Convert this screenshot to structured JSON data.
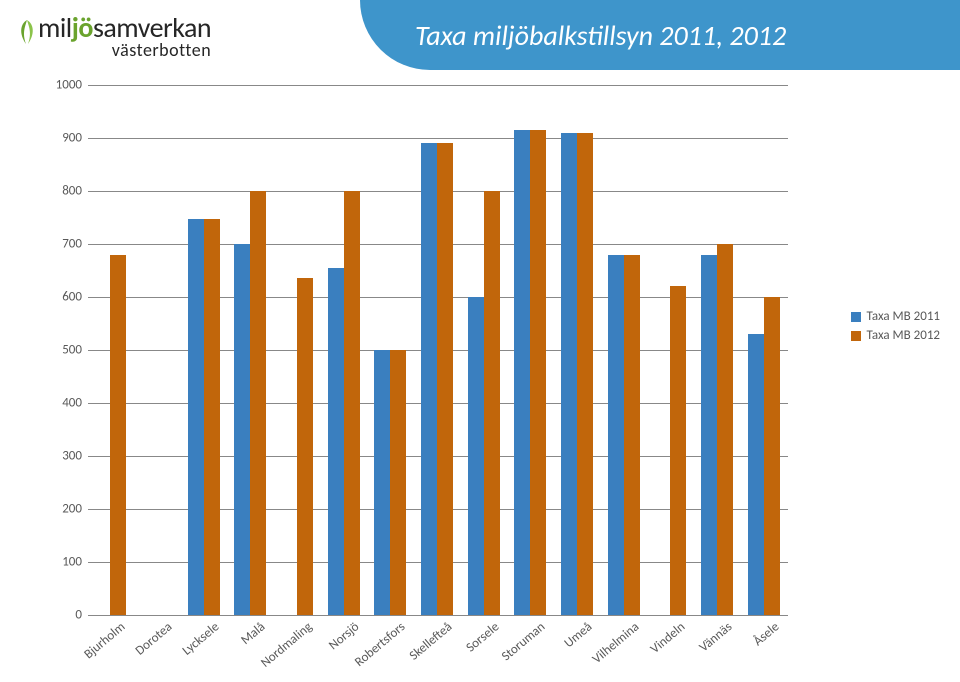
{
  "header": {
    "title": "Taxa miljöbalkstillsyn 2011, 2012"
  },
  "logo": {
    "line1_a": "mil",
    "line1_j": "j",
    "line1_o": "ö",
    "line1_b": "samverkan",
    "line2": "västerbotten"
  },
  "chart": {
    "type": "bar",
    "ylim": [
      0,
      1000
    ],
    "ytick_step": 100,
    "ticks": [
      "0",
      "100",
      "200",
      "300",
      "400",
      "500",
      "600",
      "700",
      "800",
      "900",
      "1000"
    ],
    "grid_color": "#888888",
    "series": [
      {
        "name": "Taxa MB 2011",
        "color": "#3a7fbf"
      },
      {
        "name": "Taxa MB 2012",
        "color": "#c1660b"
      }
    ],
    "categories": [
      "Bjurholm",
      "Dorotea",
      "Lycksele",
      "Malå",
      "Nordmaling",
      "Norsjö",
      "Robertsfors",
      "Skellefteå",
      "Sorsele",
      "Storuman",
      "Umeå",
      "Vilhelmina",
      "Vindeln",
      "Vännäs",
      "Åsele"
    ],
    "values_a": [
      0,
      0,
      748,
      700,
      0,
      655,
      500,
      890,
      600,
      915,
      910,
      680,
      0,
      680,
      530
    ],
    "values_b": [
      680,
      0,
      748,
      800,
      635,
      800,
      500,
      890,
      800,
      915,
      910,
      680,
      620,
      700,
      600
    ]
  }
}
